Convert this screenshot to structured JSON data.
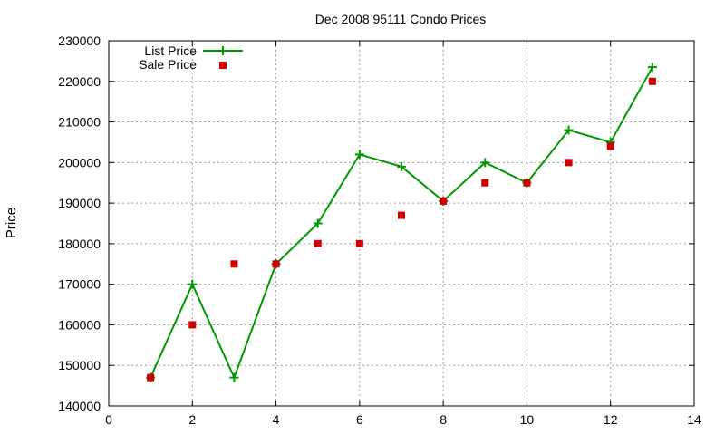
{
  "chart_data": {
    "type": "line",
    "title": "Dec 2008 95111 Condo Prices",
    "xlabel": "",
    "ylabel": "Price",
    "xlim": [
      0,
      14
    ],
    "ylim": [
      140000,
      230000
    ],
    "xticks": [
      0,
      2,
      4,
      6,
      8,
      10,
      12,
      14
    ],
    "yticks": [
      140000,
      150000,
      160000,
      170000,
      180000,
      190000,
      200000,
      210000,
      220000,
      230000
    ],
    "grid": true,
    "legend_position": "top-left",
    "series": [
      {
        "name": "List Price",
        "style": "line+cross",
        "color": "#009900",
        "x": [
          1,
          2,
          3,
          4,
          5,
          6,
          7,
          8,
          9,
          10,
          11,
          12,
          13
        ],
        "y": [
          147000,
          170000,
          147000,
          175000,
          185000,
          202000,
          199000,
          190500,
          200000,
          195000,
          208000,
          205000,
          223500
        ]
      },
      {
        "name": "Sale Price",
        "style": "square",
        "color": "#cc0000",
        "x": [
          1,
          2,
          3,
          4,
          5,
          6,
          7,
          8,
          9,
          10,
          11,
          12,
          13
        ],
        "y": [
          147000,
          160000,
          175000,
          175000,
          180000,
          180000,
          187000,
          190500,
          195000,
          195000,
          200000,
          204000,
          220000
        ]
      }
    ]
  }
}
